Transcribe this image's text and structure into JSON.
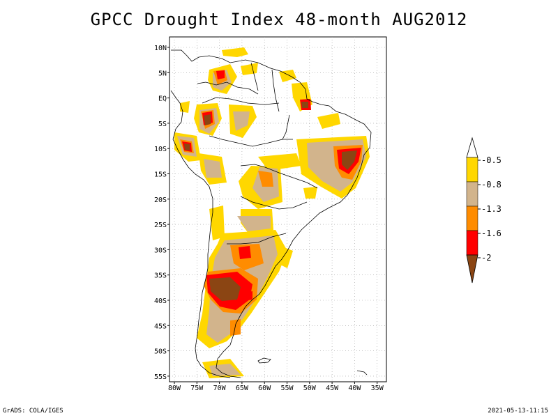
{
  "title": "GPCC Drought Index 48-month AUG2012",
  "footer": {
    "left": "GrADS: COLA/IGES",
    "right": "2021-05-13-11:15"
  },
  "axes": {
    "lat_labels": [
      "10N",
      "5N",
      "EQ",
      "5S",
      "10S",
      "15S",
      "20S",
      "25S",
      "30S",
      "35S",
      "40S",
      "45S",
      "50S",
      "55S"
    ],
    "lon_labels": [
      "80W",
      "75W",
      "70W",
      "65W",
      "60W",
      "55W",
      "50W",
      "45W",
      "40W",
      "35W"
    ]
  },
  "legend": {
    "labels": [
      "-0.5",
      "-0.8",
      "-1.3",
      "-1.6",
      "-2"
    ],
    "colors": [
      "#ffffff",
      "#ffd700",
      "#d2b48c",
      "#ff8c00",
      "#ff0000",
      "#8b4513"
    ]
  }
}
